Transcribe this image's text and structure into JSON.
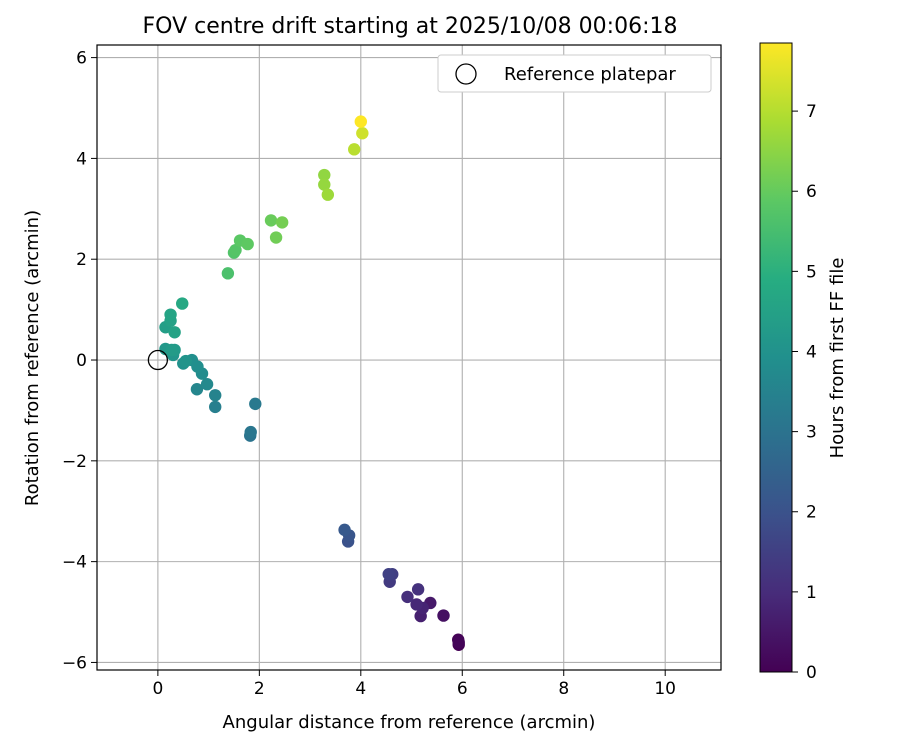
{
  "chart_data": {
    "type": "scatter",
    "title": "FOV centre drift starting at 2025/10/08 00:06:18",
    "xlabel": "Angular distance from reference (arcmin)",
    "ylabel": "Rotation from reference (arcmin)",
    "xlim": [
      -1.2,
      11.1
    ],
    "ylim": [
      -6.15,
      6.25
    ],
    "xticks": [
      "0",
      "2",
      "4",
      "6",
      "8",
      "10"
    ],
    "xtick_values": [
      0,
      2,
      4,
      6,
      8,
      10
    ],
    "yticks": [
      "−6",
      "−4",
      "−2",
      "0",
      "2",
      "4",
      "6"
    ],
    "ytick_values": [
      -6,
      -4,
      -2,
      0,
      2,
      4,
      6
    ],
    "grid": true,
    "legend": {
      "placement": "top-right",
      "entries": [
        "Reference platepar"
      ]
    },
    "reference_point": {
      "label": "Reference platepar",
      "x": 0,
      "y": 0
    },
    "colorbar": {
      "label": "Hours from first FF file",
      "colormap": "viridis",
      "range": [
        0,
        7.85
      ],
      "ticks": [
        "0",
        "1",
        "2",
        "3",
        "4",
        "5",
        "6",
        "7"
      ],
      "tick_values": [
        0,
        1,
        2,
        3,
        4,
        5,
        6,
        7
      ]
    },
    "points": [
      {
        "x": 5.93,
        "y": -5.65,
        "hours": 0.0
      },
      {
        "x": 5.92,
        "y": -5.55,
        "hours": 0.05
      },
      {
        "x": 5.93,
        "y": -5.6,
        "hours": 0.1
      },
      {
        "x": 5.63,
        "y": -5.07,
        "hours": 0.35
      },
      {
        "x": 5.37,
        "y": -4.82,
        "hours": 0.55
      },
      {
        "x": 5.18,
        "y": -5.08,
        "hours": 0.7
      },
      {
        "x": 5.22,
        "y": -4.92,
        "hours": 0.8
      },
      {
        "x": 5.1,
        "y": -4.85,
        "hours": 0.9
      },
      {
        "x": 4.92,
        "y": -4.7,
        "hours": 1.05
      },
      {
        "x": 5.13,
        "y": -4.55,
        "hours": 1.15
      },
      {
        "x": 4.57,
        "y": -4.4,
        "hours": 1.35
      },
      {
        "x": 4.62,
        "y": -4.25,
        "hours": 1.45
      },
      {
        "x": 4.55,
        "y": -4.25,
        "hours": 1.55
      },
      {
        "x": 3.75,
        "y": -3.6,
        "hours": 2.0
      },
      {
        "x": 3.77,
        "y": -3.48,
        "hours": 2.1
      },
      {
        "x": 3.68,
        "y": -3.37,
        "hours": 2.2
      },
      {
        "x": 1.82,
        "y": -1.5,
        "hours": 3.0
      },
      {
        "x": 1.83,
        "y": -1.43,
        "hours": 3.1
      },
      {
        "x": 1.92,
        "y": -0.87,
        "hours": 3.2
      },
      {
        "x": 1.13,
        "y": -0.93,
        "hours": 3.4
      },
      {
        "x": 1.13,
        "y": -0.7,
        "hours": 3.5
      },
      {
        "x": 0.77,
        "y": -0.58,
        "hours": 3.6
      },
      {
        "x": 0.97,
        "y": -0.48,
        "hours": 3.7
      },
      {
        "x": 0.87,
        "y": -0.27,
        "hours": 3.8
      },
      {
        "x": 0.78,
        "y": -0.13,
        "hours": 3.85
      },
      {
        "x": 0.67,
        "y": 0.0,
        "hours": 3.9
      },
      {
        "x": 0.5,
        "y": -0.07,
        "hours": 4.0
      },
      {
        "x": 0.55,
        "y": -0.02,
        "hours": 4.05
      },
      {
        "x": 0.3,
        "y": 0.1,
        "hours": 4.1
      },
      {
        "x": 0.15,
        "y": 0.22,
        "hours": 4.2
      },
      {
        "x": 0.33,
        "y": 0.2,
        "hours": 4.25
      },
      {
        "x": 0.27,
        "y": 0.2,
        "hours": 4.3
      },
      {
        "x": 0.15,
        "y": 0.65,
        "hours": 4.4
      },
      {
        "x": 0.25,
        "y": 0.78,
        "hours": 4.5
      },
      {
        "x": 0.33,
        "y": 0.55,
        "hours": 4.55
      },
      {
        "x": 0.25,
        "y": 0.9,
        "hours": 4.6
      },
      {
        "x": 0.48,
        "y": 1.12,
        "hours": 4.75
      },
      {
        "x": 1.38,
        "y": 1.72,
        "hours": 5.6
      },
      {
        "x": 1.5,
        "y": 2.13,
        "hours": 5.7
      },
      {
        "x": 1.53,
        "y": 2.18,
        "hours": 5.75
      },
      {
        "x": 1.62,
        "y": 2.37,
        "hours": 5.85
      },
      {
        "x": 1.77,
        "y": 2.3,
        "hours": 5.9
      },
      {
        "x": 2.23,
        "y": 2.77,
        "hours": 6.05
      },
      {
        "x": 2.33,
        "y": 2.43,
        "hours": 6.15
      },
      {
        "x": 2.45,
        "y": 2.73,
        "hours": 6.2
      },
      {
        "x": 3.28,
        "y": 3.67,
        "hours": 6.55
      },
      {
        "x": 3.28,
        "y": 3.48,
        "hours": 6.6
      },
      {
        "x": 3.35,
        "y": 3.28,
        "hours": 6.7
      },
      {
        "x": 3.87,
        "y": 4.18,
        "hours": 7.05
      },
      {
        "x": 4.03,
        "y": 4.5,
        "hours": 7.3
      },
      {
        "x": 4.0,
        "y": 4.73,
        "hours": 7.85
      }
    ]
  }
}
